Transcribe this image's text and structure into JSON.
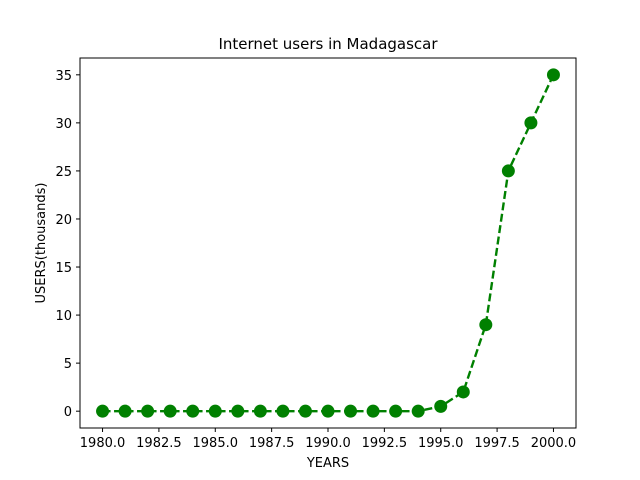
{
  "chart_data": {
    "type": "line",
    "title": "Internet users in Madagascar",
    "xlabel": "YEARS",
    "ylabel": "USERS(thousands)",
    "x": [
      1980,
      1981,
      1982,
      1983,
      1984,
      1985,
      1986,
      1987,
      1988,
      1989,
      1990,
      1991,
      1992,
      1993,
      1994,
      1995,
      1996,
      1997,
      1998,
      1999,
      2000
    ],
    "series": [
      {
        "values": [
          0,
          0,
          0,
          0,
          0,
          0,
          0,
          0,
          0,
          0,
          0,
          0,
          0,
          0,
          0,
          0.5,
          2,
          9,
          25,
          30,
          35
        ],
        "color": "#008000",
        "line_style": "dashed",
        "marker": "circle"
      }
    ],
    "xlim": [
      1979,
      2001
    ],
    "ylim": [
      -1.75,
      36.75
    ],
    "xticks": [
      1980.0,
      1982.5,
      1985.0,
      1987.5,
      1990.0,
      1992.5,
      1995.0,
      1997.5,
      2000.0
    ],
    "xtick_labels": [
      "1980.0",
      "1982.5",
      "1985.0",
      "1987.5",
      "1990.0",
      "1992.5",
      "1995.0",
      "1997.5",
      "2000.0"
    ],
    "yticks": [
      0,
      5,
      10,
      15,
      20,
      25,
      30,
      35
    ],
    "ytick_labels": [
      "0",
      "5",
      "10",
      "15",
      "20",
      "25",
      "30",
      "35"
    ],
    "grid": false,
    "legend": false
  }
}
